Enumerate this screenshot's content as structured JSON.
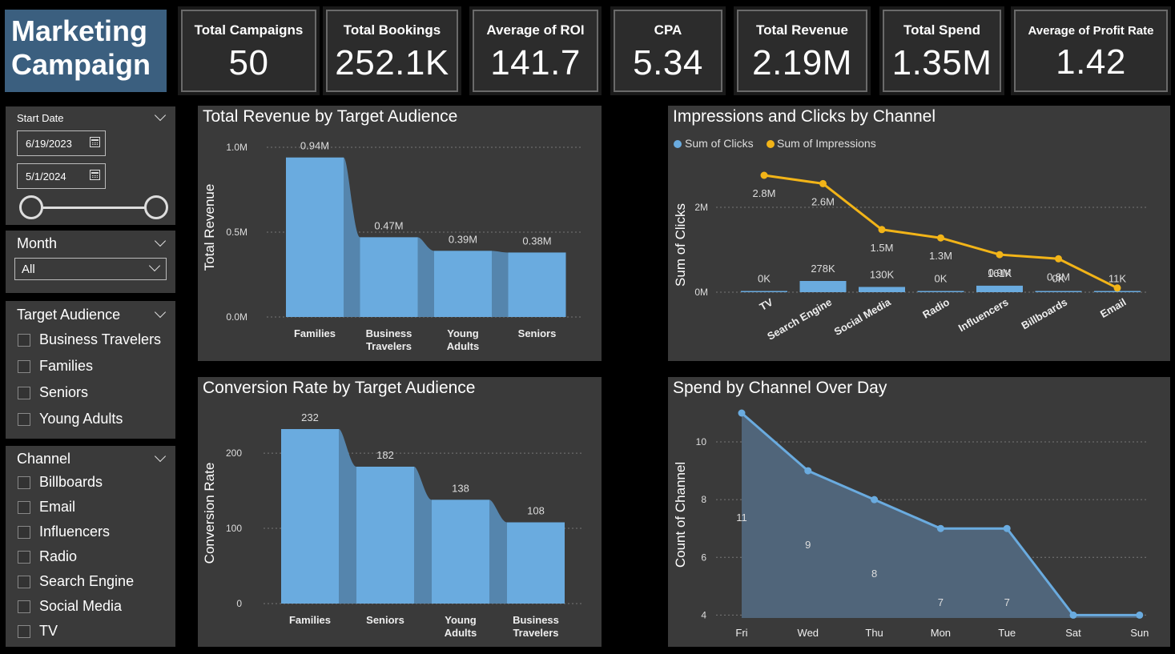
{
  "title": {
    "line1": "Marketing",
    "line2": "Campaign"
  },
  "kpis": [
    {
      "label": "Total Campaigns",
      "value": "50"
    },
    {
      "label": "Total Bookings",
      "value": "252.1K"
    },
    {
      "label": "Average of ROI",
      "value": "141.7"
    },
    {
      "label": "CPA",
      "value": "5.34"
    },
    {
      "label": "Total Revenue",
      "value": "2.19M"
    },
    {
      "label": "Total Spend",
      "value": "1.35M"
    },
    {
      "label": "Average of Profit Rate",
      "value": "1.42"
    }
  ],
  "date_slicer": {
    "label": "Start Date",
    "start": "6/19/2023",
    "end": "5/1/2024"
  },
  "month_slicer": {
    "label": "Month",
    "selected": "All"
  },
  "audience_slicer": {
    "label": "Target Audience",
    "items": [
      "Business Travelers",
      "Families",
      "Seniors",
      "Young Adults"
    ]
  },
  "channel_slicer": {
    "label": "Channel",
    "items": [
      "Billboards",
      "Email",
      "Influencers",
      "Radio",
      "Search Engine",
      "Social Media",
      "TV"
    ]
  },
  "colors": {
    "bar": "#6aabdf",
    "bar_ribbon": "#5585ad",
    "line": "#f2b418",
    "area_line": "#6aabdf",
    "panel": "#3a3a3a"
  },
  "chart_data": [
    {
      "type": "bar",
      "title": "Total Revenue by Target Audience",
      "xlabel": "",
      "ylabel": "Total Revenue",
      "categories": [
        "Families",
        "Business Travelers",
        "Young Adults",
        "Seniors"
      ],
      "category_lines": [
        [
          "Families"
        ],
        [
          "Business",
          "Travelers"
        ],
        [
          "Young",
          "Adults"
        ],
        [
          "Seniors"
        ]
      ],
      "values": [
        0.94,
        0.47,
        0.39,
        0.38
      ],
      "data_labels": [
        "0.94M",
        "0.47M",
        "0.39M",
        "0.38M"
      ],
      "ylim": [
        0,
        1.0
      ],
      "yticks": [
        0.0,
        0.5,
        1.0
      ],
      "ytick_labels": [
        "0.0M",
        "0.5M",
        "1.0M"
      ]
    },
    {
      "type": "bar",
      "title": "Impressions and Clicks by Channel",
      "xlabel": "",
      "ylabel": "Sum of Clicks",
      "legend": [
        "Sum of Clicks",
        "Sum of Impressions"
      ],
      "categories": [
        "TV",
        "Search Engine",
        "Social Media",
        "Radio",
        "Influencers",
        "Billboards",
        "Email"
      ],
      "series": [
        {
          "name": "Sum of Clicks",
          "values": [
            0,
            278,
            130,
            0,
            161,
            0,
            11
          ],
          "labels": [
            "0K",
            "278K",
            "130K",
            "0K",
            "161K",
            "0K",
            "11K"
          ]
        },
        {
          "name": "Sum of Impressions",
          "values": [
            2.8,
            2.6,
            1.5,
            1.3,
            0.9,
            0.8,
            0.1
          ],
          "labels": [
            "2.8M",
            "2.6M",
            "1.5M",
            "1.3M",
            "0.9M",
            "0.8M",
            ""
          ]
        }
      ],
      "yticks": [
        "0M",
        "2M"
      ]
    },
    {
      "type": "bar",
      "title": "Conversion Rate by Target Audience",
      "xlabel": "",
      "ylabel": "Conversion Rate",
      "categories": [
        "Families",
        "Seniors",
        "Young Adults",
        "Business Travelers"
      ],
      "category_lines": [
        [
          "Families"
        ],
        [
          "Seniors"
        ],
        [
          "Young",
          "Adults"
        ],
        [
          "Business",
          "Travelers"
        ]
      ],
      "values": [
        232,
        182,
        138,
        108
      ],
      "data_labels": [
        "232",
        "182",
        "138",
        "108"
      ],
      "ylim": [
        0,
        232
      ],
      "yticks": [
        0,
        100,
        200
      ],
      "ytick_labels": [
        "0",
        "100",
        "200"
      ]
    },
    {
      "type": "area",
      "title": "Spend by Channel Over Day",
      "xlabel": "",
      "ylabel": "Count of Channel",
      "categories": [
        "Fri",
        "Wed",
        "Thu",
        "Mon",
        "Tue",
        "Sat",
        "Sun"
      ],
      "values": [
        11,
        9,
        8,
        7,
        7,
        4,
        4
      ],
      "data_labels": [
        "11",
        "9",
        "8",
        "7",
        "7",
        "",
        ""
      ],
      "ylim": [
        4,
        11
      ],
      "yticks": [
        4,
        6,
        8,
        10
      ],
      "ytick_labels": [
        "4",
        "6",
        "8",
        "10"
      ]
    }
  ]
}
